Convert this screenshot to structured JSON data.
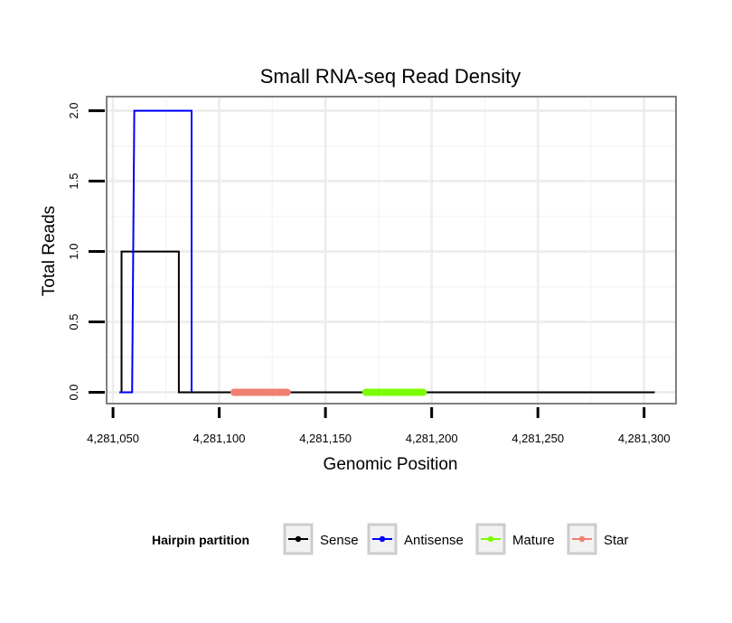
{
  "chart_data": {
    "type": "line",
    "title": "Small RNA-seq Read Density",
    "xlabel": "Genomic Position",
    "ylabel": "Total Reads",
    "xlim": [
      4281047,
      4281315
    ],
    "ylim": [
      -0.08,
      2.1
    ],
    "x_ticks": [
      4281050,
      4281100,
      4281150,
      4281200,
      4281250,
      4281300
    ],
    "x_tick_labels": [
      "4,281,050",
      "4,281,100",
      "4,281,150",
      "4,281,200",
      "4,281,250",
      "4,281,300"
    ],
    "y_ticks": [
      0,
      0.5,
      1,
      1.5,
      2
    ],
    "y_tick_labels": [
      "0.0",
      "0.5",
      "1.0",
      "1.5",
      "2.0"
    ],
    "grid": true,
    "legend": {
      "title": "Hairpin partition",
      "placement": "bottom",
      "entries": [
        {
          "name": "Sense",
          "color": "#000000"
        },
        {
          "name": "Antisense",
          "color": "#0000ff"
        },
        {
          "name": "Mature",
          "color": "#7cfc00"
        },
        {
          "name": "Star",
          "color": "#f08070"
        }
      ]
    },
    "series": [
      {
        "name": "Sense",
        "color": "#000000",
        "kind": "line",
        "x": [
          4281053,
          4281054,
          4281054,
          4281080,
          4281081,
          4281081,
          4281305
        ],
        "y": [
          0,
          0,
          1,
          1,
          1,
          0,
          0
        ]
      },
      {
        "name": "Antisense",
        "color": "#0000ff",
        "kind": "line",
        "x": [
          4281053,
          4281059,
          4281060,
          4281085,
          4281087,
          4281087
        ],
        "y": [
          0,
          0,
          2,
          2,
          2,
          0
        ]
      },
      {
        "name": "Mature",
        "color": "#7cfc00",
        "kind": "segment",
        "x": [
          4281169,
          4281196
        ],
        "y": [
          0,
          0
        ]
      },
      {
        "name": "Star",
        "color": "#f08070",
        "kind": "segment",
        "x": [
          4281107,
          4281132
        ],
        "y": [
          0,
          0
        ]
      }
    ]
  }
}
